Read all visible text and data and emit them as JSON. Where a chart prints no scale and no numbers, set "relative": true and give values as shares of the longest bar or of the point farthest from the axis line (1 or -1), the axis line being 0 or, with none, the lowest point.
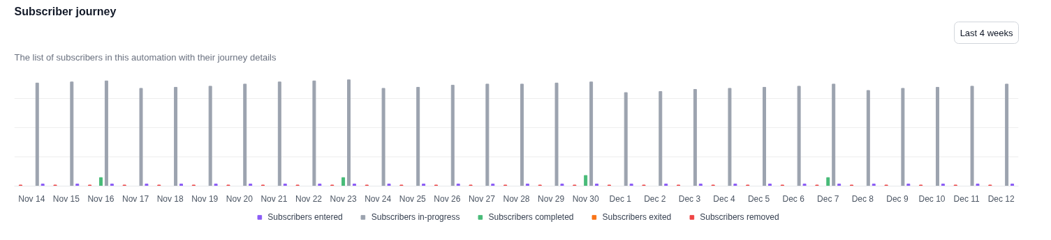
{
  "chart_data": {
    "type": "bar",
    "title": "Subscriber journey",
    "subtitle": "The list of subscribers in this automation with their journey details",
    "annotations": [
      "Last 4 weeks"
    ],
    "relative": true,
    "grid": "y",
    "legend": "bottom",
    "categories": [
      "Nov 14",
      "Nov 15",
      "Nov 16",
      "Nov 17",
      "Nov 18",
      "Nov 19",
      "Nov 20",
      "Nov 21",
      "Nov 22",
      "Nov 23",
      "Nov 24",
      "Nov 25",
      "Nov 26",
      "Nov 27",
      "Nov 28",
      "Nov 29",
      "Nov 30",
      "Dec 1",
      "Dec 2",
      "Dec 3",
      "Dec 4",
      "Dec 5",
      "Dec 6",
      "Dec 7",
      "Dec 8",
      "Dec 9",
      "Dec 10",
      "Dec 11",
      "Dec 12"
    ],
    "series": [
      {
        "name": "Subscribers entered",
        "color": "#8b5cf6",
        "values": [
          0.02,
          0.02,
          0.02,
          0.02,
          0.02,
          0.02,
          0.02,
          0.02,
          0.02,
          0.02,
          0.02,
          0.02,
          0.02,
          0.02,
          0.02,
          0.02,
          0.02,
          0.02,
          0.02,
          0.02,
          0.02,
          0.02,
          0.02,
          0.02,
          0.02,
          0.02,
          0.02,
          0.02,
          0.02
        ]
      },
      {
        "name": "Subscribers in-progress",
        "color": "#9ca3af",
        "values": [
          0.97,
          0.98,
          0.99,
          0.92,
          0.93,
          0.94,
          0.96,
          0.98,
          0.99,
          1,
          0.92,
          0.93,
          0.95,
          0.96,
          0.96,
          0.97,
          0.98,
          0.88,
          0.89,
          0.91,
          0.92,
          0.93,
          0.94,
          0.96,
          0.9,
          0.92,
          0.93,
          0.94,
          0.96
        ]
      },
      {
        "name": "Subscribers completed",
        "color": "#48bb78",
        "values": [
          0,
          0,
          0.08,
          0,
          0,
          0,
          0,
          0,
          0,
          0.08,
          0,
          0,
          0,
          0,
          0,
          0,
          0.1,
          0,
          0,
          0,
          0,
          0,
          0,
          0.08,
          0,
          0,
          0,
          0,
          0
        ]
      },
      {
        "name": "Subscribers exited",
        "color": "#f97316",
        "values": [
          0,
          0,
          0,
          0,
          0,
          0,
          0,
          0,
          0,
          0,
          0,
          0,
          0,
          0,
          0,
          0,
          0,
          0,
          0,
          0,
          0,
          0,
          0,
          0,
          0,
          0,
          0,
          0,
          0
        ]
      },
      {
        "name": "Subscribers removed",
        "color": "#ef4444",
        "values": [
          0.01,
          0.01,
          0.01,
          0.01,
          0.01,
          0.01,
          0.01,
          0.01,
          0.01,
          0.01,
          0.01,
          0.01,
          0.01,
          0.01,
          0.01,
          0.01,
          0.01,
          0.01,
          0.01,
          0.01,
          0.01,
          0.01,
          0.01,
          0.01,
          0.01,
          0.01,
          0.01,
          0.01,
          0.01
        ]
      }
    ]
  }
}
